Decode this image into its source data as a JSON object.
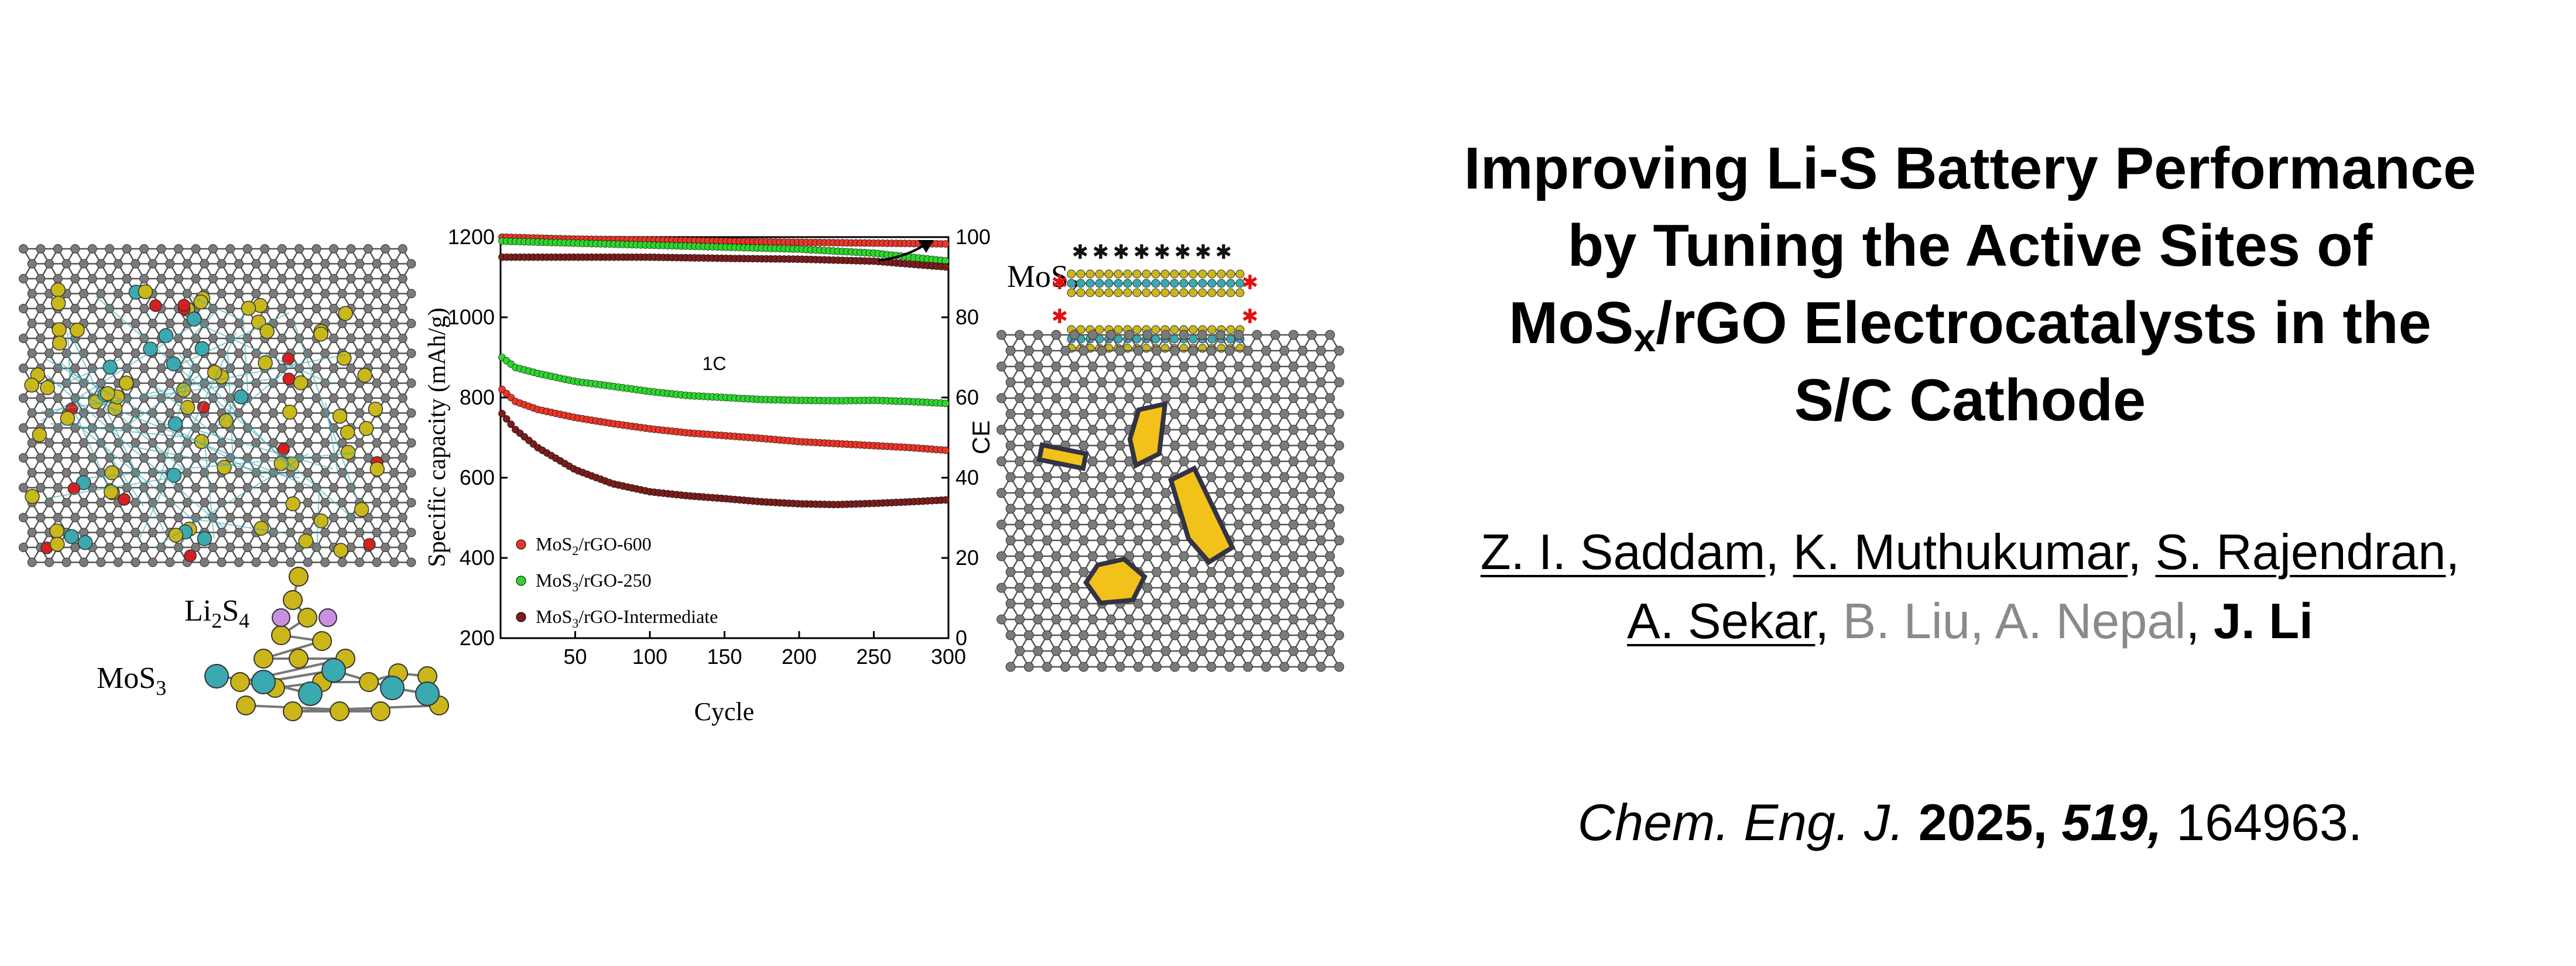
{
  "figure": {
    "left_labels": {
      "li2s4": "Li2S4",
      "mos3": "MoS3"
    },
    "right_label": "MoS2"
  },
  "chart_data": {
    "type": "scatter",
    "xlabel": "Cycle",
    "ylabel_left": "Specific capacity (mAh/g)",
    "ylabel_right": "CE",
    "annotation": "1C",
    "xlim": [
      0,
      300
    ],
    "ylim_left": [
      200,
      1200
    ],
    "ylim_right": [
      0,
      100
    ],
    "x_ticks": [
      50,
      100,
      150,
      200,
      250,
      300
    ],
    "y_left_ticks": [
      200,
      400,
      600,
      800,
      1000,
      1200
    ],
    "y_right_ticks": [
      0,
      20,
      40,
      60,
      80,
      100
    ],
    "legend_position": "bottom-left",
    "series": [
      {
        "name": "MoS2/rGO-600",
        "color": "#e8372a",
        "capacity": {
          "x": [
            1,
            10,
            25,
            50,
            75,
            100,
            125,
            150,
            175,
            200,
            225,
            250,
            275,
            300
          ],
          "y": [
            820,
            790,
            770,
            750,
            735,
            722,
            712,
            705,
            698,
            690,
            685,
            680,
            675,
            668
          ]
        },
        "ce": {
          "x": [
            1,
            50,
            100,
            150,
            200,
            250,
            300
          ],
          "y": [
            100,
            99.5,
            99.3,
            99.0,
            98.7,
            98.5,
            98.3
          ]
        }
      },
      {
        "name": "MoS3/rGO-250",
        "color": "#2fd52f",
        "capacity": {
          "x": [
            1,
            10,
            25,
            50,
            75,
            100,
            125,
            150,
            175,
            200,
            225,
            250,
            275,
            300
          ],
          "y": [
            900,
            875,
            860,
            840,
            828,
            815,
            805,
            800,
            795,
            793,
            792,
            793,
            790,
            785
          ]
        },
        "ce": {
          "x": [
            1,
            50,
            100,
            150,
            200,
            250,
            300
          ],
          "y": [
            99,
            98.5,
            98.0,
            97.5,
            97.0,
            96.0,
            94.0
          ]
        }
      },
      {
        "name": "MoS3/rGO-Intermediate",
        "color": "#7b1e1e",
        "capacity": {
          "x": [
            1,
            10,
            25,
            50,
            75,
            100,
            125,
            150,
            175,
            200,
            225,
            250,
            275,
            300
          ],
          "y": [
            760,
            720,
            675,
            620,
            585,
            565,
            555,
            548,
            540,
            535,
            533,
            536,
            540,
            545
          ]
        },
        "ce": {
          "x": [
            1,
            50,
            100,
            150,
            200,
            250,
            300
          ],
          "y": [
            95,
            95.0,
            95.0,
            94.7,
            94.5,
            94.0,
            92.5
          ]
        }
      }
    ]
  },
  "title": {
    "line1": "Improving Li-S Battery Performance",
    "line2": "by Tuning the Active Sites of",
    "line3_pre": "MoS",
    "line3_sub": "x",
    "line3_post": "/rGO Electrocatalysts in the",
    "line4": "S/C Cathode"
  },
  "authors": {
    "a1": "Z. I. Saddam",
    "a2": "K. Muthukumar",
    "a3": "S. Rajendran",
    "a4": "A. Sekar",
    "a5": "B. Liu, A. Nepal",
    "a6": "J. Li",
    "sep": ", "
  },
  "citation": {
    "journal": "Chem. Eng. J.",
    "year": "2025,",
    "volume": "519,",
    "pages": "164963."
  }
}
